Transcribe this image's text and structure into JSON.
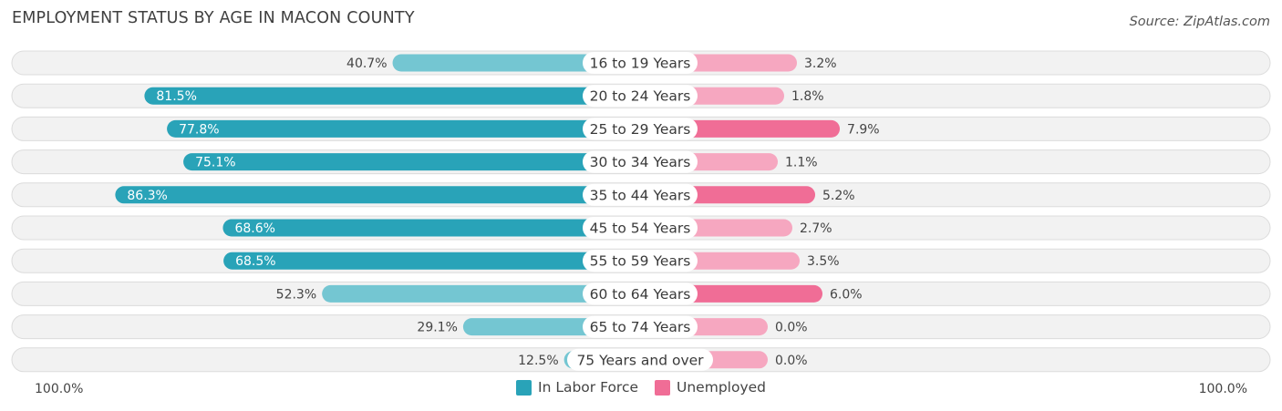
{
  "title": "EMPLOYMENT STATUS BY AGE IN MACON COUNTY",
  "source": "Source: ZipAtlas.com",
  "colors": {
    "labor_strong": "#29a3b8",
    "labor_light": "#74c6d2",
    "unemp_strong": "#f06d96",
    "unemp_light": "#f6a7c0",
    "row_bg": "#f0f0f0",
    "row_border": "#dcdcdc"
  },
  "axis": {
    "left_label": "100.0%",
    "right_label": "100.0%"
  },
  "legend": [
    {
      "label": "In Labor Force",
      "color": "#29a3b8"
    },
    {
      "label": "Unemployed",
      "color": "#f06d96"
    }
  ],
  "chart_data": {
    "type": "bar",
    "orientation": "horizontal-diverging",
    "categories": [
      "16 to 19 Years",
      "20 to 24 Years",
      "25 to 29 Years",
      "30 to 34 Years",
      "35 to 44 Years",
      "45 to 54 Years",
      "55 to 59 Years",
      "60 to 64 Years",
      "65 to 74 Years",
      "75 Years and over"
    ],
    "series": [
      {
        "name": "In Labor Force",
        "values": [
          40.7,
          81.5,
          77.8,
          75.1,
          86.3,
          68.6,
          68.5,
          52.3,
          29.1,
          12.5
        ],
        "labels": [
          "40.7%",
          "81.5%",
          "77.8%",
          "75.1%",
          "86.3%",
          "68.6%",
          "68.5%",
          "52.3%",
          "29.1%",
          "12.5%"
        ]
      },
      {
        "name": "Unemployed",
        "values": [
          3.2,
          1.8,
          7.9,
          1.1,
          5.2,
          2.7,
          3.5,
          6.0,
          0.0,
          0.0
        ],
        "labels": [
          "3.2%",
          "1.8%",
          "7.9%",
          "1.1%",
          "5.2%",
          "2.7%",
          "3.5%",
          "6.0%",
          "0.0%",
          "0.0%"
        ]
      }
    ],
    "xlim": [
      -100,
      100
    ],
    "legend_position": "bottom-center"
  }
}
